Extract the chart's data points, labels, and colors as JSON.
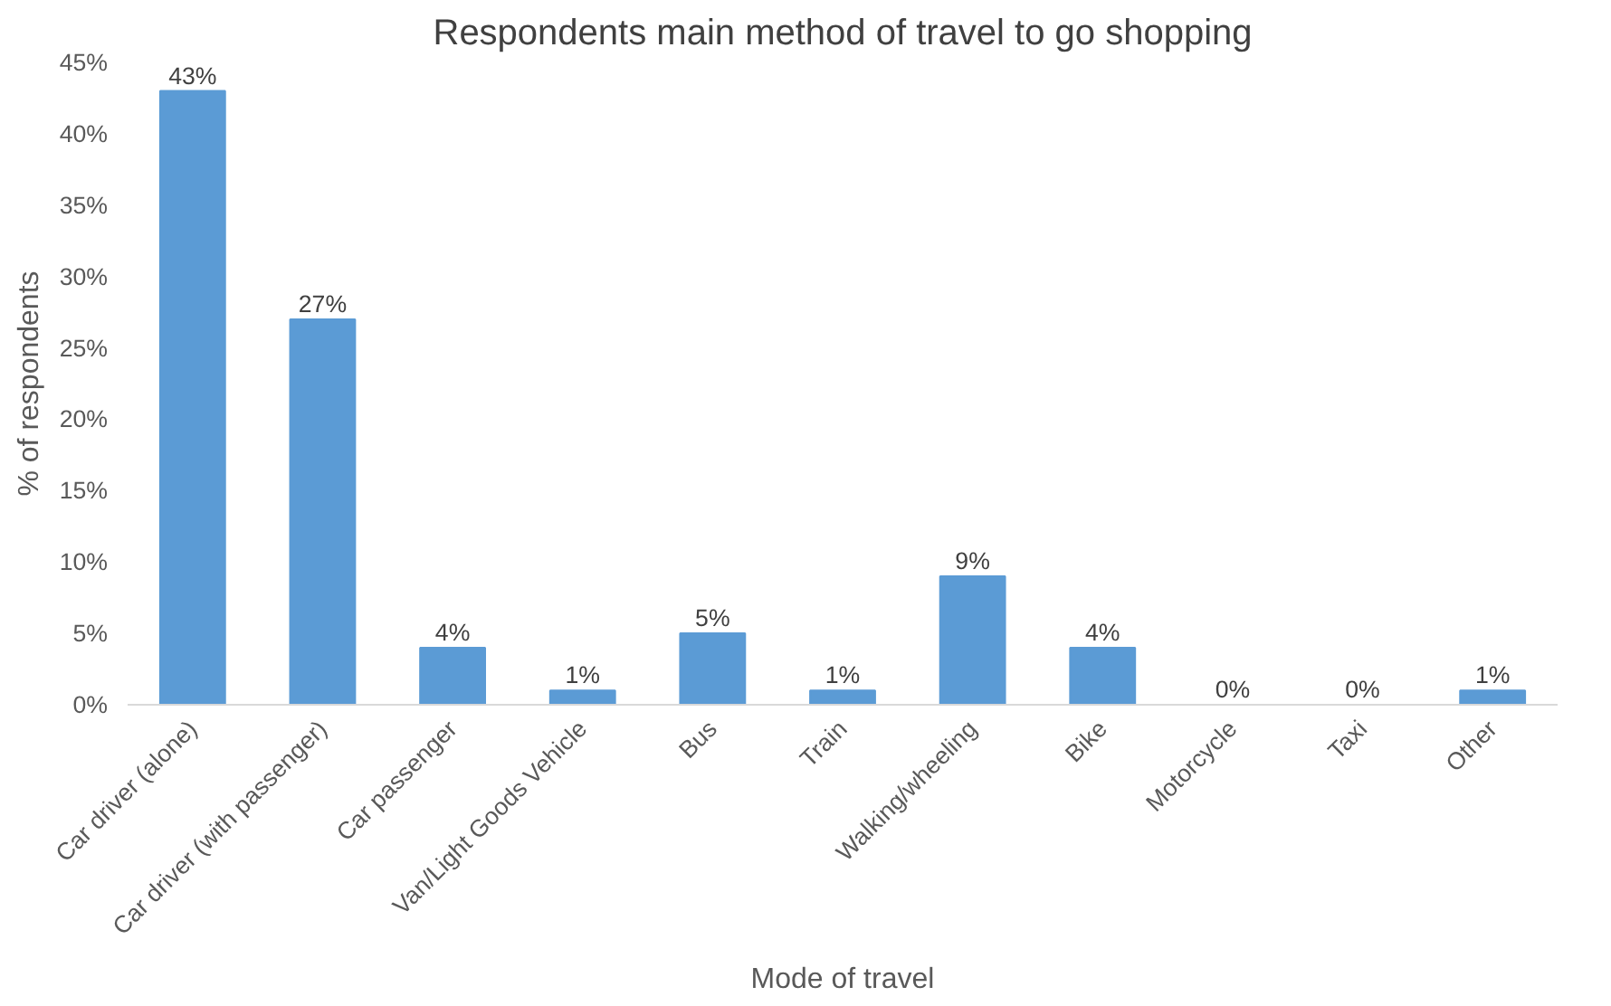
{
  "chart_data": {
    "type": "bar",
    "title": "Respondents main method of travel to go shopping",
    "xlabel": "Mode of travel",
    "ylabel": "% of respondents",
    "categories": [
      "Car driver (alone)",
      "Car driver (with passenger)",
      "Car passenger",
      "Van/Light Goods Vehicle",
      "Bus",
      "Train",
      "Walking/wheeling",
      "Bike",
      "Motorcycle",
      "Taxi",
      "Other"
    ],
    "values": [
      43,
      27,
      4,
      1,
      5,
      1,
      9,
      4,
      0,
      0,
      1
    ],
    "value_labels": [
      "43%",
      "27%",
      "4%",
      "1%",
      "5%",
      "1%",
      "9%",
      "4%",
      "0%",
      "0%",
      "1%"
    ],
    "color": "#5b9bd5",
    "ylim": [
      0,
      45
    ],
    "yticks": [
      {
        "value": 0,
        "label": "0%"
      },
      {
        "value": 5,
        "label": "5%"
      },
      {
        "value": 10,
        "label": "10%"
      },
      {
        "value": 15,
        "label": "15%"
      },
      {
        "value": 20,
        "label": "20%"
      },
      {
        "value": 25,
        "label": "25%"
      },
      {
        "value": 30,
        "label": "30%"
      },
      {
        "value": 35,
        "label": "35%"
      },
      {
        "value": 40,
        "label": "40%"
      },
      {
        "value": 45,
        "label": "45%"
      }
    ],
    "grid": false
  }
}
